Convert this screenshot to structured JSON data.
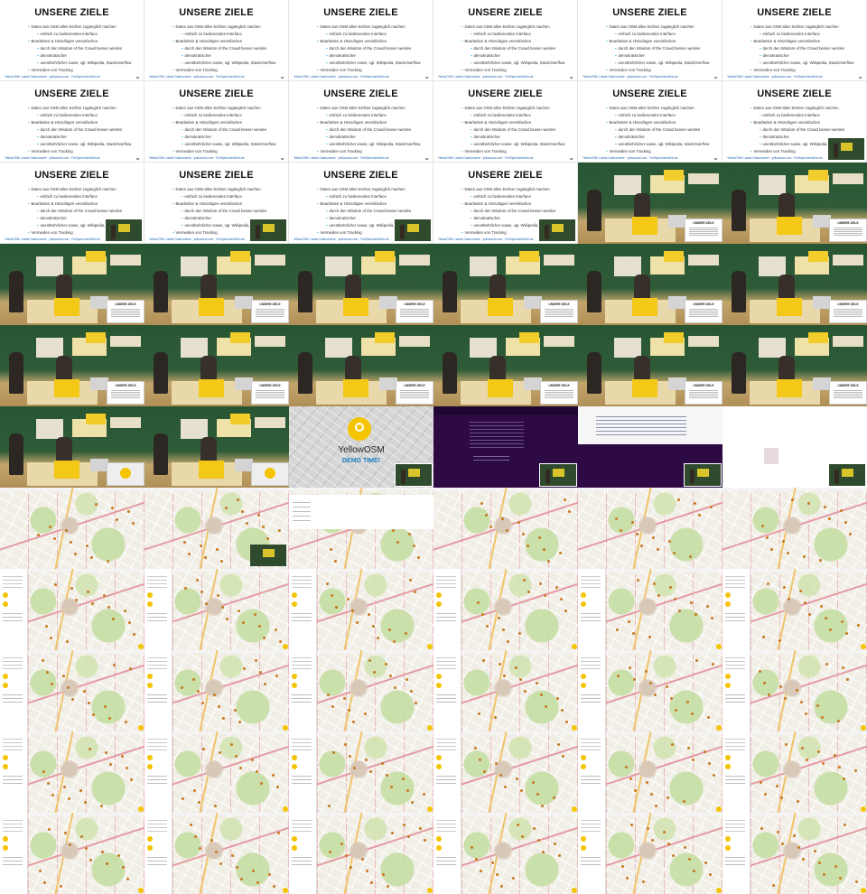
{
  "slide": {
    "title": "UNSERE ZIELE",
    "bullets": [
      {
        "text": "Daten aus OSM allen leichter zugänglich machen",
        "level": 0
      },
      {
        "text": "einfach zu bedienendes Interface",
        "level": 1
      },
      {
        "text": "Bearbeiten & Hinzufügen vereinfachen",
        "level": 0
      },
      {
        "text": "durch den Wisdom of the Crowd besser werden",
        "level": 1
      },
      {
        "text": "demokratischer",
        "level": 1
      },
      {
        "text": "unentbehrlicher sowie, vgl. Wikipedia, StackOverflow",
        "level": 1
      },
      {
        "text": "Vermeiden von Tracking",
        "level": 0
      }
    ],
    "footer": "YellowOSM: Lokale Gastronomie · yellowosm.com · FreiSprechendSein.de"
  },
  "stage_card_title": "UNSERE ZIELE",
  "splash": {
    "brand": "YellowOSM",
    "demo": "DEMO TIME!"
  },
  "grid": {
    "columns": 6,
    "rows": 11,
    "tiles": [
      "slide",
      "slide",
      "slide",
      "slide",
      "slide",
      "slide",
      "slide",
      "slide",
      "slide",
      "slide",
      "slide",
      "slide-pip",
      "slide-pip",
      "slide-pip",
      "slide-pip",
      "slide-pip",
      "stage",
      "stage",
      "stage",
      "stage",
      "stage",
      "stage",
      "stage",
      "stage",
      "stage",
      "stage",
      "stage",
      "stage",
      "stage",
      "stage",
      "stage-yo",
      "stage-yo",
      "splash",
      "dark",
      "dark-half",
      "white",
      "map-plain",
      "map-plain",
      "map-menu",
      "map-plain",
      "map-plain",
      "map-plain",
      "map-side",
      "map-side",
      "map-side",
      "map-side",
      "map-side",
      "map-side",
      "map-side",
      "map-side",
      "map-side",
      "map-side",
      "map-side",
      "map-side",
      "map-side",
      "map-side",
      "map-side",
      "map-side",
      "map-side",
      "map-side",
      "map-side",
      "map-side",
      "map-side",
      "map-side",
      "map-side",
      "map-side"
    ]
  }
}
